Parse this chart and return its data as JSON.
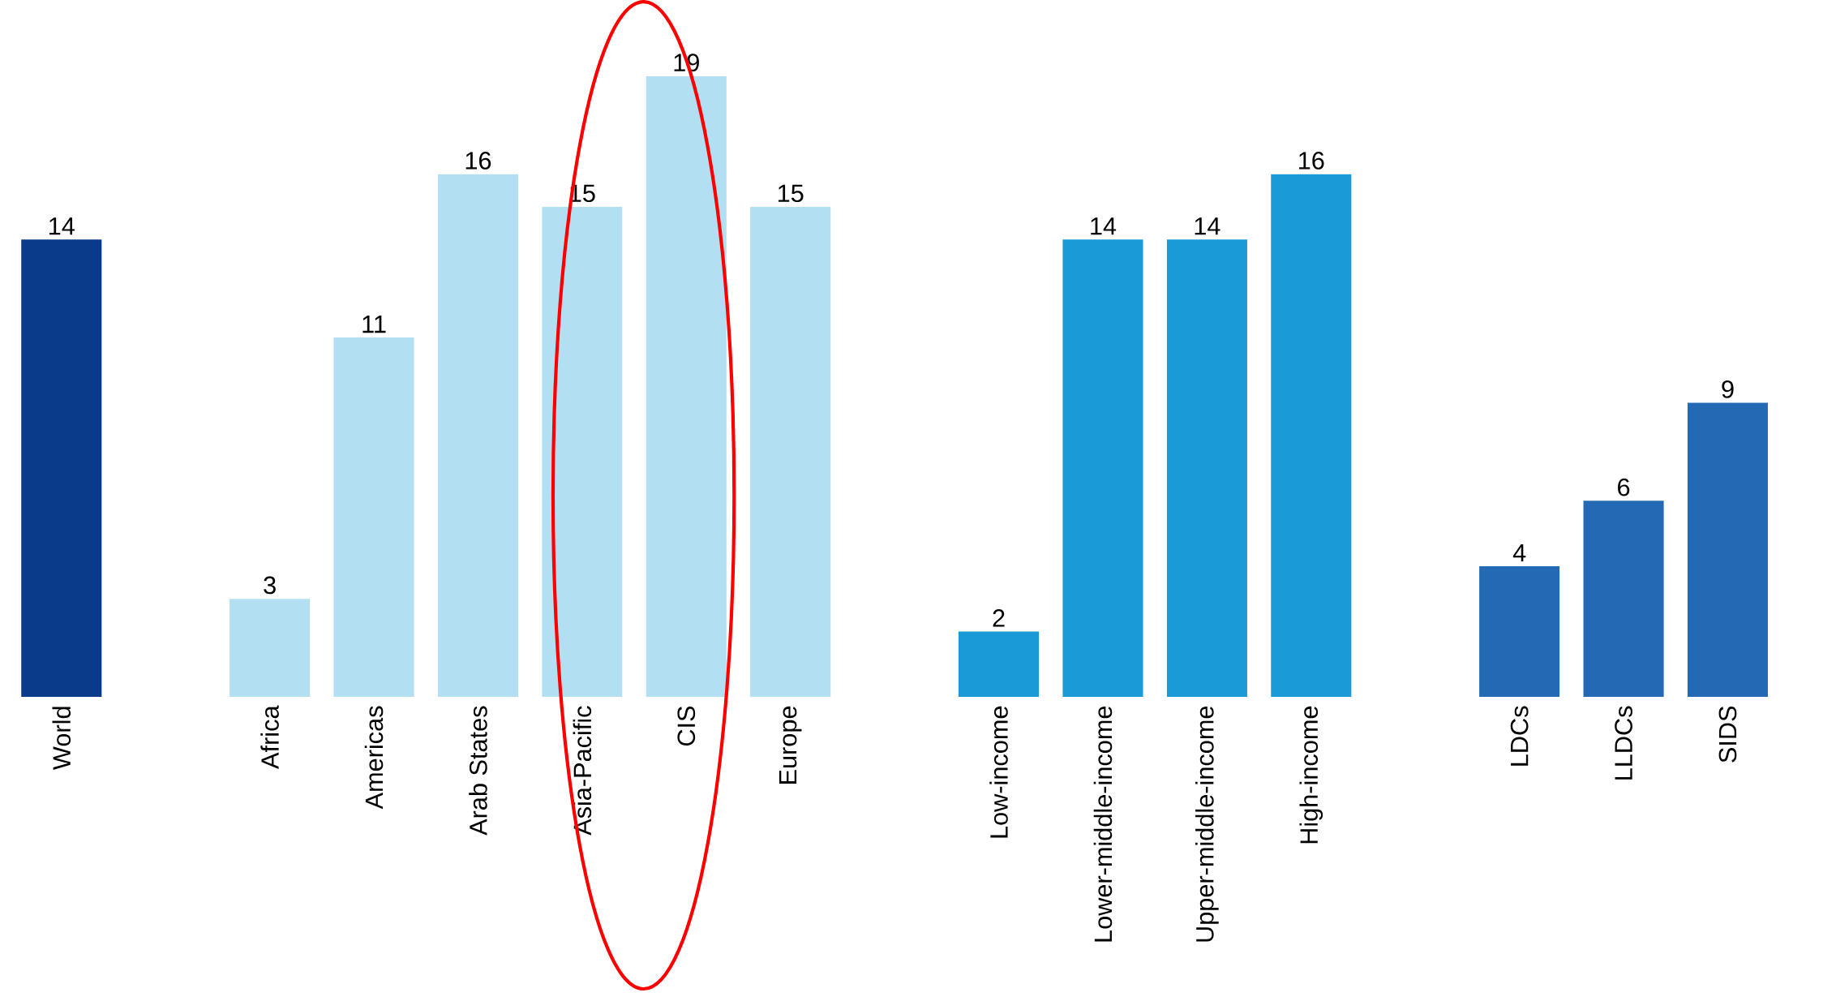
{
  "chart_data": {
    "type": "bar",
    "categories": [
      "World",
      null,
      "Africa",
      "Americas",
      "Arab States",
      "Asia-Pacific",
      "CIS",
      "Europe",
      null,
      "Low-income",
      "Lower-middle-income",
      "Upper-middle-income",
      "High-income",
      null,
      "LDCs",
      "LLDCs",
      "SIDS"
    ],
    "values": [
      14,
      null,
      3,
      11,
      16,
      15,
      19,
      15,
      null,
      2,
      14,
      14,
      16,
      null,
      4,
      6,
      9
    ],
    "colors": [
      "#0a3a8a",
      null,
      "#b3dff2",
      "#b3dff2",
      "#b3dff2",
      "#b3dff2",
      "#b3dff2",
      "#b3dff2",
      null,
      "#1a9ad6",
      "#1a9ad6",
      "#1a9ad6",
      "#1a9ad6",
      null,
      "#2369b3",
      "#2369b3",
      "#2369b3"
    ],
    "data_labels": true
  }
}
